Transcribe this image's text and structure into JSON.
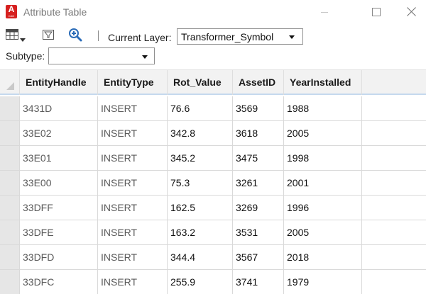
{
  "window": {
    "title": "Attribute Table",
    "app_icon_letter": "A",
    "app_icon_sub": "CAD"
  },
  "toolbar": {
    "table_icon": "table-options-icon",
    "filter_icon": "filter-icon",
    "zoom_icon": "zoom-to-icon",
    "current_layer_label": "Current Layer:",
    "current_layer_value": "Transformer_Symbol",
    "subtype_label": "Subtype:",
    "subtype_value": ""
  },
  "table": {
    "columns": [
      "EntityHandle",
      "EntityType",
      "Rot_Value",
      "AssetID",
      "YearInstalled"
    ],
    "rows": [
      [
        "3431D",
        "INSERT",
        "76.6",
        "3569",
        "1988"
      ],
      [
        "33E02",
        "INSERT",
        "342.8",
        "3618",
        "2005"
      ],
      [
        "33E01",
        "INSERT",
        "345.2",
        "3475",
        "1998"
      ],
      [
        "33E00",
        "INSERT",
        "75.3",
        "3261",
        "2001"
      ],
      [
        "33DFF",
        "INSERT",
        "162.5",
        "3269",
        "1996"
      ],
      [
        "33DFE",
        "INSERT",
        "163.2",
        "3531",
        "2005"
      ],
      [
        "33DFD",
        "INSERT",
        "344.4",
        "3567",
        "2018"
      ],
      [
        "33DFC",
        "INSERT",
        "255.9",
        "3741",
        "1979"
      ]
    ]
  },
  "colors": {
    "accent": "#d6201f",
    "header_underline": "#c5d9ee",
    "zoom_icon": "#2b6cb8"
  }
}
